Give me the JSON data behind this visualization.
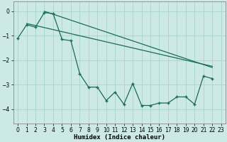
{
  "xlabel": "Humidex (Indice chaleur)",
  "background_color": "#cce9e5",
  "grid_color": "#aad4cf",
  "line_color": "#1a6b5a",
  "xlim": [
    -0.5,
    23.5
  ],
  "ylim": [
    -4.6,
    0.4
  ],
  "xticks": [
    0,
    1,
    2,
    3,
    4,
    5,
    6,
    7,
    8,
    9,
    10,
    11,
    12,
    13,
    14,
    15,
    16,
    17,
    18,
    19,
    20,
    21,
    22,
    23
  ],
  "yticks": [
    0,
    -1,
    -2,
    -3,
    -4
  ],
  "zigzag_x": [
    0,
    1,
    2,
    3,
    4,
    5,
    6,
    7,
    8,
    9,
    10,
    11,
    12,
    13,
    14,
    15,
    16,
    17,
    18,
    19,
    20,
    21,
    22
  ],
  "zigzag_y": [
    -1.1,
    -0.55,
    -0.65,
    -0.05,
    -0.1,
    -1.15,
    -1.2,
    -2.55,
    -3.1,
    -3.1,
    -3.65,
    -3.3,
    -3.8,
    -2.95,
    -3.85,
    -3.85,
    -3.75,
    -3.75,
    -3.5,
    -3.5,
    -3.8,
    -2.65,
    -2.75
  ],
  "line1_x": [
    1,
    22
  ],
  "line1_y": [
    -0.5,
    -2.25
  ],
  "line2_x": [
    3,
    22
  ],
  "line2_y": [
    0.0,
    -2.3
  ],
  "tick_fontsize": 5.5,
  "xlabel_fontsize": 6.5
}
